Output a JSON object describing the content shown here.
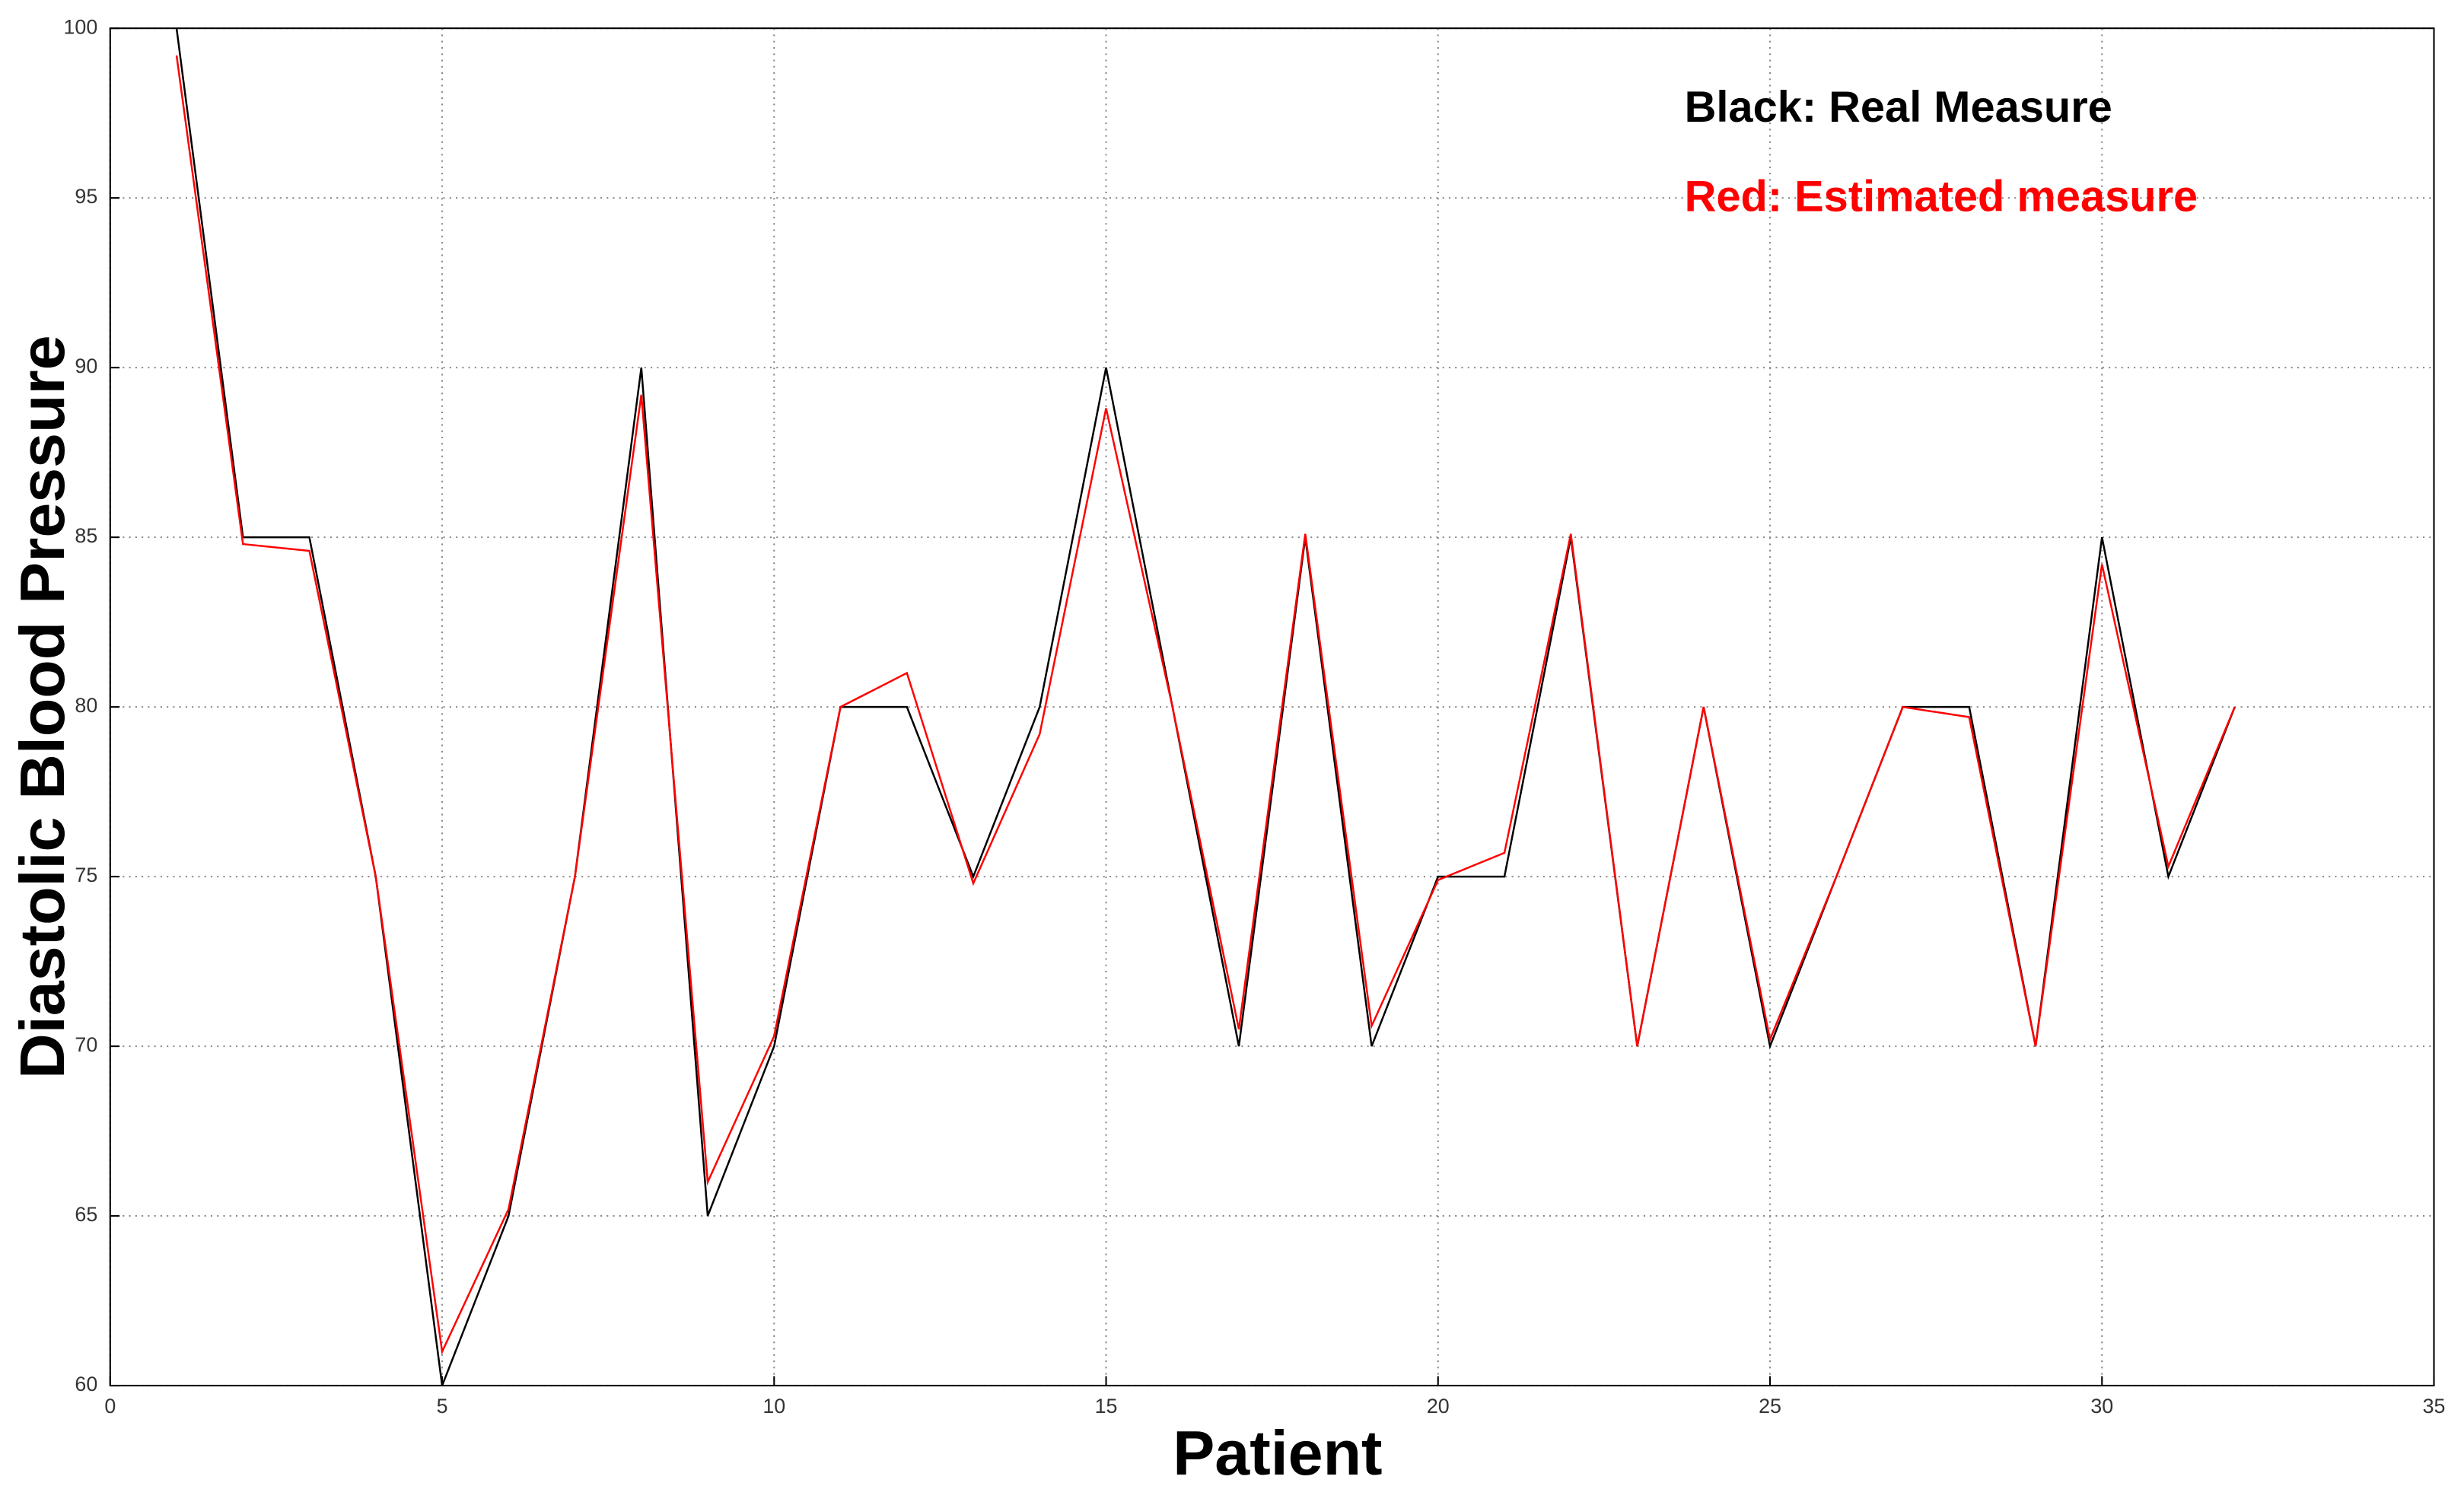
{
  "chart_data": {
    "type": "line",
    "xlabel": "Patient",
    "ylabel": "Diastolic Blood Pressure",
    "x": [
      1,
      2,
      3,
      4,
      5,
      6,
      7,
      8,
      9,
      10,
      11,
      12,
      13,
      14,
      15,
      16,
      17,
      18,
      19,
      20,
      21,
      22,
      23,
      24,
      25,
      26,
      27,
      28,
      29,
      30,
      31,
      32
    ],
    "series": [
      {
        "name": "Black: Real Measure",
        "color": "#000000",
        "values": [
          100,
          85,
          85,
          75,
          60,
          65,
          75,
          90,
          65,
          70,
          80,
          80,
          75,
          80,
          90,
          80,
          70,
          85,
          70,
          75,
          75,
          85,
          70,
          80,
          70,
          75,
          80,
          80,
          70,
          85,
          75,
          80
        ]
      },
      {
        "name": "Red: Estimated measure",
        "color": "#ff0000",
        "values": [
          99.2,
          84.8,
          84.6,
          75,
          61,
          65.2,
          75,
          89.2,
          66,
          70.3,
          80,
          81,
          74.8,
          79.2,
          88.8,
          80,
          70.5,
          85.1,
          70.6,
          74.9,
          75.7,
          85.1,
          70,
          80,
          70.2,
          75,
          80,
          79.7,
          70,
          84.2,
          75.3,
          80
        ]
      }
    ],
    "xlim": [
      0,
      35
    ],
    "xticks": [
      0,
      5,
      10,
      15,
      20,
      25,
      30,
      35
    ],
    "ylim": [
      60,
      100
    ],
    "yticks": [
      60,
      65,
      70,
      75,
      80,
      85,
      90,
      95,
      100
    ],
    "grid": true
  }
}
